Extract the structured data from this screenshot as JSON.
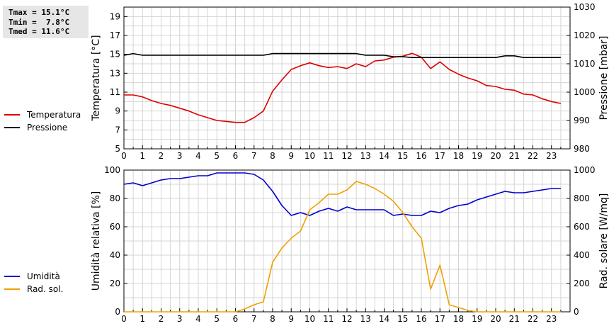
{
  "stats": {
    "tmax": "Tmax = 15.1°C",
    "tmin": "Tmin =  7.8°C",
    "tmed": "Tmed = 11.6°C"
  },
  "colors": {
    "temperature": "#dd0000",
    "pressure": "#000000",
    "humidity": "#0000cc",
    "solar": "#f0a000",
    "grid": "#d4d4d4"
  },
  "chart_data": [
    {
      "type": "line",
      "x_range": [
        0,
        24
      ],
      "x_ticks": [
        0,
        1,
        2,
        3,
        4,
        5,
        6,
        7,
        8,
        9,
        10,
        11,
        12,
        13,
        14,
        15,
        16,
        17,
        18,
        19,
        20,
        21,
        22,
        23
      ],
      "grid": true,
      "legend_position": "left",
      "left_axis": {
        "label": "Temperatura [°C]",
        "range": [
          5,
          20
        ],
        "ticks": [
          5,
          7,
          9,
          11,
          13,
          15,
          17,
          19
        ]
      },
      "right_axis": {
        "label": "Pressione [mbar]",
        "range": [
          980,
          1030
        ],
        "ticks": [
          980,
          990,
          1000,
          1010,
          1020,
          1030
        ]
      },
      "series": [
        {
          "name": "Temperatura",
          "axis": "left",
          "color": "#dd0000",
          "x": [
            0,
            0.5,
            1,
            1.5,
            2,
            2.5,
            3,
            3.5,
            4,
            4.5,
            5,
            5.5,
            6,
            6.5,
            7,
            7.5,
            8,
            8.5,
            9,
            9.5,
            10,
            10.5,
            11,
            11.5,
            12,
            12.5,
            13,
            13.5,
            14,
            14.5,
            15,
            15.5,
            16,
            16.5,
            17,
            17.5,
            18,
            18.5,
            19,
            19.5,
            20,
            20.5,
            21,
            21.5,
            22,
            22.5,
            23,
            23.5
          ],
          "y": [
            10.7,
            10.7,
            10.5,
            10.1,
            9.8,
            9.6,
            9.3,
            9.0,
            8.6,
            8.3,
            8.0,
            7.9,
            7.8,
            7.8,
            8.3,
            9.0,
            11.1,
            12.3,
            13.4,
            13.8,
            14.1,
            13.8,
            13.6,
            13.7,
            13.5,
            14.0,
            13.7,
            14.3,
            14.4,
            14.7,
            14.8,
            15.1,
            14.7,
            13.5,
            14.2,
            13.4,
            12.9,
            12.5,
            12.2,
            11.7,
            11.6,
            11.3,
            11.2,
            10.8,
            10.7,
            10.3,
            10.0,
            9.8
          ]
        },
        {
          "name": "Pressione",
          "axis": "right",
          "color": "#000000",
          "x": [
            0,
            0.5,
            1,
            1.5,
            2,
            2.5,
            3,
            3.5,
            4,
            4.5,
            5,
            5.5,
            6,
            6.5,
            7,
            7.5,
            8,
            8.5,
            9,
            9.5,
            10,
            10.5,
            11,
            11.5,
            12,
            12.5,
            13,
            13.5,
            14,
            14.5,
            15,
            15.5,
            16,
            16.5,
            17,
            17.5,
            18,
            18.5,
            19,
            19.5,
            20,
            20.5,
            21,
            21.5,
            22,
            22.5,
            23,
            23.5
          ],
          "y": [
            1013,
            1013.6,
            1013,
            1013,
            1013,
            1013,
            1013,
            1013,
            1013,
            1013,
            1013,
            1013,
            1013,
            1013,
            1013,
            1013,
            1013.6,
            1013.6,
            1013.6,
            1013.6,
            1013.6,
            1013.6,
            1013.6,
            1013.6,
            1013.6,
            1013.6,
            1013,
            1013,
            1013,
            1012.5,
            1012.5,
            1012.2,
            1012.2,
            1012.2,
            1012.2,
            1012.2,
            1012.2,
            1012.2,
            1012.2,
            1012.2,
            1012.2,
            1012.8,
            1012.8,
            1012.2,
            1012.2,
            1012.2,
            1012.2,
            1012.2
          ]
        }
      ]
    },
    {
      "type": "line",
      "x_range": [
        0,
        24
      ],
      "x_ticks": [
        0,
        1,
        2,
        3,
        4,
        5,
        6,
        7,
        8,
        9,
        10,
        11,
        12,
        13,
        14,
        15,
        16,
        17,
        18,
        19,
        20,
        21,
        22,
        23
      ],
      "grid": true,
      "legend_position": "left",
      "left_axis": {
        "label": "Umidità relativa [%]",
        "range": [
          0,
          100
        ],
        "ticks": [
          0,
          20,
          40,
          60,
          80,
          100
        ]
      },
      "right_axis": {
        "label": "Rad. solare [W/mq]",
        "range": [
          0,
          1000
        ],
        "ticks": [
          0,
          200,
          400,
          600,
          800,
          1000
        ]
      },
      "series": [
        {
          "name": "Umidità",
          "axis": "left",
          "color": "#0000cc",
          "x": [
            0,
            0.5,
            1,
            1.5,
            2,
            2.5,
            3,
            3.5,
            4,
            4.5,
            5,
            5.5,
            6,
            6.5,
            7,
            7.5,
            8,
            8.5,
            9,
            9.5,
            10,
            10.5,
            11,
            11.5,
            12,
            12.5,
            13,
            13.5,
            14,
            14.5,
            15,
            15.5,
            16,
            16.5,
            17,
            17.5,
            18,
            18.5,
            19,
            19.5,
            20,
            20.5,
            21,
            21.5,
            22,
            22.5,
            23,
            23.5
          ],
          "y": [
            90,
            91,
            89,
            91,
            93,
            94,
            94,
            95,
            96,
            96,
            98,
            98,
            98,
            98,
            97,
            93,
            85,
            75,
            68,
            70,
            68,
            71,
            73,
            71,
            74,
            72,
            72,
            72,
            72,
            68,
            69,
            68,
            68,
            71,
            70,
            73,
            75,
            76,
            79,
            81,
            83,
            85,
            84,
            84,
            85,
            86,
            87,
            87
          ]
        },
        {
          "name": "Rad. sol.",
          "axis": "right",
          "color": "#f0a000",
          "x": [
            0,
            0.5,
            1,
            1.5,
            2,
            2.5,
            3,
            3.5,
            4,
            4.5,
            5,
            5.5,
            6,
            6.5,
            7,
            7.5,
            8,
            8.5,
            9,
            9.5,
            10,
            10.5,
            11,
            11.5,
            12,
            12.5,
            13,
            13.5,
            14,
            14.5,
            15,
            15.5,
            16,
            16.5,
            17,
            17.5,
            18,
            18.5,
            19,
            19.5,
            20,
            20.5,
            21,
            21.5,
            22,
            22.5,
            23,
            23.5
          ],
          "y": [
            0,
            0,
            0,
            0,
            0,
            0,
            0,
            0,
            0,
            0,
            0,
            0,
            0,
            20,
            50,
            70,
            350,
            450,
            520,
            570,
            720,
            770,
            830,
            830,
            860,
            920,
            900,
            870,
            830,
            780,
            700,
            600,
            520,
            160,
            330,
            50,
            30,
            10,
            0,
            0,
            0,
            0,
            0,
            0,
            0,
            0,
            0,
            0
          ]
        }
      ]
    }
  ]
}
